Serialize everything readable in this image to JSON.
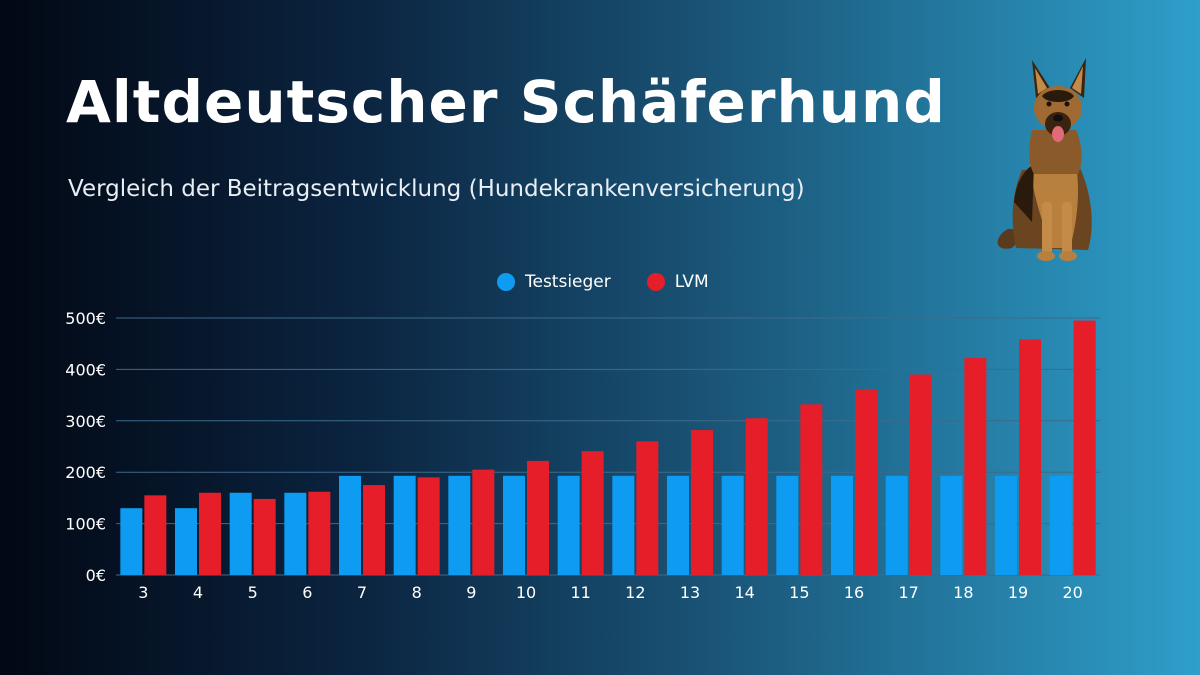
{
  "header": {
    "title": "Altdeutscher Schäferhund",
    "subtitle": "Vergleich der Beitragsentwicklung (Hundekrankenversicherung)"
  },
  "colors": {
    "testsieger": "#0d9cf2",
    "lvm": "#e51e2a",
    "grid": "#3d6a8a",
    "axis_text": "#ffffff"
  },
  "chart_data": {
    "type": "bar",
    "title": "",
    "xlabel": "",
    "ylabel": "",
    "categories": [
      "3",
      "4",
      "5",
      "6",
      "7",
      "8",
      "9",
      "10",
      "11",
      "12",
      "13",
      "14",
      "15",
      "16",
      "17",
      "18",
      "19",
      "20"
    ],
    "series": [
      {
        "name": "Testsieger",
        "values": [
          130,
          130,
          160,
          160,
          193,
          193,
          193,
          193,
          193,
          193,
          193,
          193,
          193,
          193,
          193,
          193,
          193,
          193
        ]
      },
      {
        "name": "LVM",
        "values": [
          155,
          160,
          148,
          162,
          175,
          190,
          205,
          222,
          241,
          260,
          282,
          305,
          332,
          360,
          390,
          422,
          458,
          495
        ]
      }
    ],
    "ylim": [
      0,
      500
    ],
    "yticks": [
      0,
      100,
      200,
      300,
      400,
      500
    ],
    "ytick_labels": [
      "0€",
      "100€",
      "200€",
      "300€",
      "400€",
      "500€"
    ],
    "grid": true,
    "legend_position": "top-center"
  }
}
